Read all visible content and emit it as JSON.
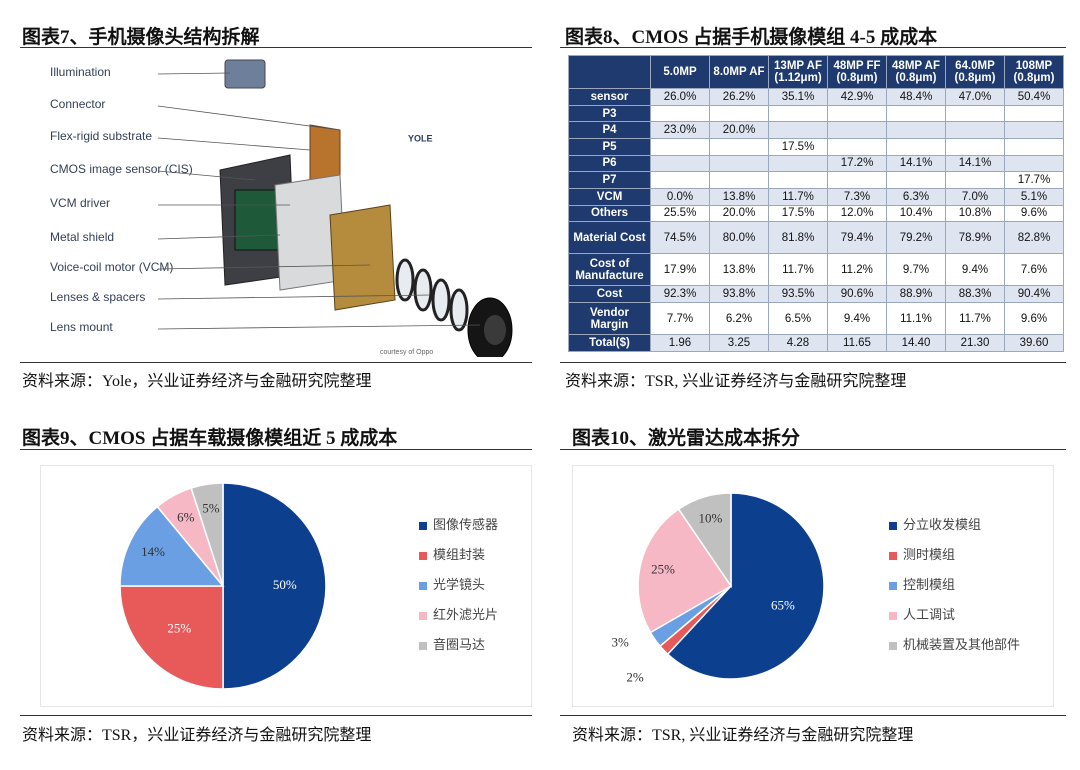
{
  "figure7": {
    "title": "图表7、手机摄像头结构拆解",
    "labels": [
      "Illumination",
      "Connector",
      "Flex-rigid substrate",
      "CMOS image sensor (CIS)",
      "VCM driver",
      "Metal shield",
      "Voice-coil motor (VCM)",
      "Lenses & spacers",
      "Lens mount"
    ],
    "logo": "YOLE",
    "credit": "courtesy of Oppo",
    "source": "资料来源：Yole，兴业证券经济与金融研究院整理"
  },
  "figure8": {
    "title": "图表8、CMOS 占据手机摄像模组 4-5 成成本",
    "header": [
      null,
      "5.0MP",
      "8.0MP AF",
      "13MP AF (1.12μm)",
      "48MP FF (0.8μm)",
      "48MP AF (0.8μm)",
      "64.0MP (0.8μm)",
      "108MP (0.8μm)"
    ],
    "rows": [
      {
        "label": "sensor",
        "cells": [
          "26.0%",
          "26.2%",
          "35.1%",
          "42.9%",
          "48.4%",
          "47.0%",
          "50.4%"
        ]
      },
      {
        "label": "P3",
        "cells": [
          null,
          null,
          null,
          null,
          null,
          null,
          null
        ]
      },
      {
        "label": "P4",
        "cells": [
          "23.0%",
          "20.0%",
          null,
          null,
          null,
          null,
          null
        ]
      },
      {
        "label": "P5",
        "cells": [
          null,
          null,
          "17.5%",
          null,
          null,
          null,
          null
        ]
      },
      {
        "label": "P6",
        "cells": [
          null,
          null,
          null,
          "17.2%",
          "14.1%",
          "14.1%",
          null
        ]
      },
      {
        "label": "P7",
        "cells": [
          null,
          null,
          null,
          null,
          null,
          null,
          "17.7%"
        ]
      },
      {
        "label": "VCM",
        "cells": [
          "0.0%",
          "13.8%",
          "11.7%",
          "7.3%",
          "6.3%",
          "7.0%",
          "5.1%"
        ]
      },
      {
        "label": "Others",
        "cells": [
          "25.5%",
          "20.0%",
          "17.5%",
          "12.0%",
          "10.4%",
          "10.8%",
          "9.6%"
        ]
      },
      {
        "label": "Material Cost",
        "cells": [
          "74.5%",
          "80.0%",
          "81.8%",
          "79.4%",
          "79.2%",
          "78.9%",
          "82.8%"
        ]
      },
      {
        "label": "Cost of Manufacture",
        "cells": [
          "17.9%",
          "13.8%",
          "11.7%",
          "11.2%",
          "9.7%",
          "9.4%",
          "7.6%"
        ]
      },
      {
        "label": "Cost",
        "cells": [
          "92.3%",
          "93.8%",
          "93.5%",
          "90.6%",
          "88.9%",
          "88.3%",
          "90.4%"
        ]
      },
      {
        "label": "Vendor Margin",
        "cells": [
          "7.7%",
          "6.2%",
          "6.5%",
          "9.4%",
          "11.1%",
          "11.7%",
          "9.6%"
        ]
      },
      {
        "label": "Total($)",
        "cells": [
          "1.96",
          "3.25",
          "4.28",
          "11.65",
          "14.40",
          "21.30",
          "39.60"
        ]
      }
    ],
    "source": "资料来源：TSR, 兴业证券经济与金融研究院整理"
  },
  "chart_data": [
    {
      "type": "pie",
      "title": "图表9、CMOS 占据车载摄像模组近 5 成成本",
      "categories": [
        "图像传感器",
        "模组封装",
        "光学镜头",
        "红外滤光片",
        "音圈马达"
      ],
      "values": [
        50,
        25,
        14,
        6,
        5
      ],
      "value_labels": [
        "50%",
        "25%",
        "14%",
        "6%",
        "5%"
      ],
      "colors": [
        "#0d3f8f",
        "#e85a5a",
        "#6b9fe3",
        "#f7b8c6",
        "#c0c0c0"
      ],
      "legend": "right",
      "source": "资料来源：TSR，兴业证券经济与金融研究院整理"
    },
    {
      "type": "pie",
      "title": "图表10、激光雷达成本拆分",
      "categories": [
        "分立收发模组",
        "测时模组",
        "控制模组",
        "人工调试",
        "机械装置及其他部件"
      ],
      "values": [
        65,
        2,
        3,
        25,
        10
      ],
      "value_labels": [
        "65%",
        "2%",
        "3%",
        "25%",
        "10%"
      ],
      "colors": [
        "#0d3f8f",
        "#e85a5a",
        "#6b9fe3",
        "#f7b8c6",
        "#c0c0c0"
      ],
      "legend": "right",
      "source": "资料来源：TSR, 兴业证券经济与金融研究院整理"
    }
  ]
}
